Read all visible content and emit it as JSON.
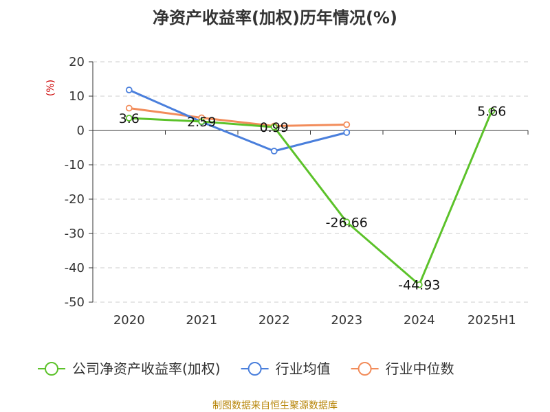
{
  "chart_data": {
    "type": "line",
    "title": "净资产收益率(加权)历年情况(%)",
    "ylabel": "(%)",
    "xlabel": "",
    "categories": [
      "2020",
      "2021",
      "2022",
      "2023",
      "2024",
      "2025H1"
    ],
    "ylim": [
      -50,
      20
    ],
    "yticks": [
      20,
      10,
      0,
      -10,
      -20,
      -30,
      -40,
      -50
    ],
    "grid": true,
    "legend_position": "bottom",
    "series": [
      {
        "name": "公司净资产收益率(加权)",
        "color": "#5cc22a",
        "values": [
          3.6,
          2.59,
          0.99,
          -26.66,
          -44.93,
          5.66
        ],
        "labels": [
          "3.6",
          "2.59",
          "0.99",
          "-26.66",
          "-44.93",
          "5.66"
        ]
      },
      {
        "name": "行业均值",
        "color": "#4a7fdc",
        "values": [
          11.8,
          2.5,
          -6.0,
          -0.6,
          null,
          null
        ]
      },
      {
        "name": "行业中位数",
        "color": "#f28c5a",
        "values": [
          6.5,
          3.7,
          1.3,
          1.7,
          null,
          null
        ]
      }
    ]
  },
  "source": "制图数据来自恒生聚源数据库"
}
